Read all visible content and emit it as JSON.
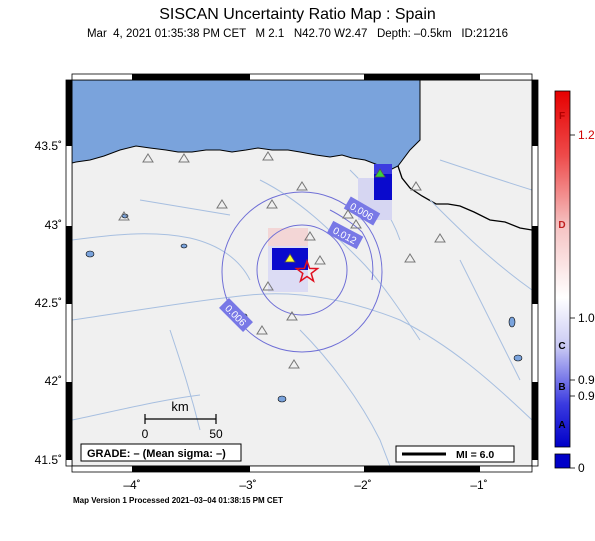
{
  "title": "SISCAN Uncertainty Ratio Map : Spain",
  "subtitle": "Mar  4, 2021 01:35:38 PM CET   M 2.1   N42.70 W2.47   Depth: –0.5km   ID:21216",
  "footer": "Map Version 1 Processed 2021–03–04 01:38:15 PM CET",
  "axes": {
    "lat_labels": [
      "43.5˚",
      "43˚",
      "42.5˚",
      "42˚",
      "41.5˚"
    ],
    "lon_labels": [
      "–4˚",
      "–3˚",
      "–2˚",
      "–1˚"
    ]
  },
  "contour_labels": [
    "0.006",
    "0.012",
    "0.006"
  ],
  "scale_bar": {
    "unit": "km",
    "start": "0",
    "end": "50"
  },
  "grade_box": "GRADE: – (Mean sigma: –)",
  "mi_legend": "MI = 6.0",
  "colorbar": {
    "letters": [
      "F",
      "D",
      "C",
      "B",
      "A"
    ],
    "values": [
      "1.2",
      "1.0",
      "0.9",
      "0.9",
      "0"
    ]
  },
  "colors": {
    "sea": "#7aa3dc",
    "land": "#f0f0f0",
    "river": "#a7bfe0",
    "contour": "#6f6fd6",
    "epicenter": "#e01020"
  }
}
